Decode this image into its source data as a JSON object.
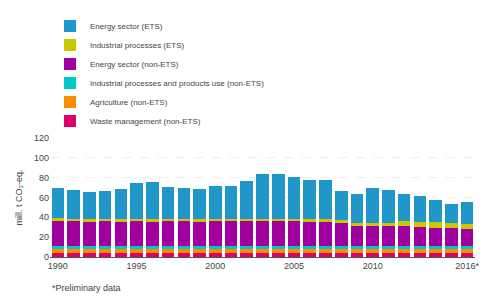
{
  "chart_data": {
    "type": "bar",
    "stacked": true,
    "categories": [
      "1990",
      null,
      null,
      null,
      null,
      "1995",
      null,
      null,
      null,
      null,
      "2000",
      null,
      null,
      null,
      null,
      "2005",
      null,
      null,
      null,
      null,
      "2010",
      null,
      null,
      null,
      null,
      null,
      "2016*"
    ],
    "series": [
      {
        "name": "Waste management (non-ETS)",
        "color": "#E0006A",
        "values": [
          4.0,
          4.0,
          4.0,
          4.0,
          4.0,
          4.0,
          4.0,
          4.0,
          4.0,
          4.0,
          4.0,
          4.0,
          4.0,
          4.0,
          4.0,
          4.0,
          4.0,
          4.0,
          4.0,
          4.0,
          4.0,
          4.0,
          4.0,
          4.0,
          4.0,
          4.0,
          4.0
        ]
      },
      {
        "name": "Agriculture (non-ETS)",
        "color": "#FF8C00",
        "values": [
          5.0,
          5.0,
          5.0,
          5.0,
          5.0,
          5.0,
          5.0,
          5.0,
          5.0,
          5.0,
          5.0,
          5.0,
          5.0,
          5.0,
          5.0,
          5.0,
          5.0,
          5.0,
          5.0,
          5.0,
          5.0,
          5.0,
          5.0,
          5.0,
          5.0,
          5.0,
          5.0
        ]
      },
      {
        "name": "Industrial processes and products use (non-ETS)",
        "color": "#00C8C8",
        "values": [
          2.0,
          2.0,
          2.0,
          2.0,
          2.0,
          2.0,
          2.0,
          2.0,
          2.0,
          2.0,
          2.0,
          2.0,
          2.0,
          2.0,
          2.0,
          2.0,
          2.0,
          2.0,
          2.0,
          2.0,
          2.0,
          2.0,
          2.0,
          2.0,
          2.0,
          2.0,
          2.0
        ]
      },
      {
        "name": "Energy sector (non-ETS)",
        "color": "#A000A0",
        "values": [
          26.0,
          25.5,
          25.0,
          25.5,
          25.0,
          25.5,
          25.0,
          25.5,
          25.5,
          25.0,
          25.5,
          25.5,
          25.5,
          25.5,
          25.5,
          25.5,
          25.0,
          25.0,
          24.0,
          21.0,
          20.5,
          20.5,
          20.5,
          19.5,
          18.5,
          18.5,
          17.5
        ]
      },
      {
        "name": "Industrial processes (ETS)",
        "color": "#C8C800",
        "values": [
          2.0,
          2.0,
          2.0,
          2.0,
          2.0,
          2.0,
          2.0,
          2.0,
          2.0,
          2.0,
          2.0,
          2.0,
          2.0,
          2.0,
          2.0,
          2.0,
          2.0,
          2.0,
          2.0,
          2.0,
          3.0,
          3.0,
          4.5,
          4.5,
          6.0,
          5.0,
          5.0
        ]
      },
      {
        "name": "Energy sector (ETS)",
        "color": "#2196C8",
        "values": [
          31.0,
          29.5,
          27.5,
          28.5,
          31.0,
          36.0,
          38.0,
          32.0,
          31.0,
          31.0,
          33.0,
          33.0,
          38.0,
          45.0,
          45.0,
          42.0,
          40.0,
          39.5,
          30.0,
          29.5,
          35.0,
          33.0,
          28.0,
          27.0,
          22.0,
          19.0,
          22.0
        ]
      }
    ],
    "ylabel": "mill. t CO₂-eq.",
    "ylim": [
      0,
      120
    ],
    "yticks": [
      0,
      20,
      40,
      60,
      80,
      100,
      120
    ],
    "grid": true,
    "legend": "top",
    "annotations": [
      "*Preliminary data"
    ]
  }
}
